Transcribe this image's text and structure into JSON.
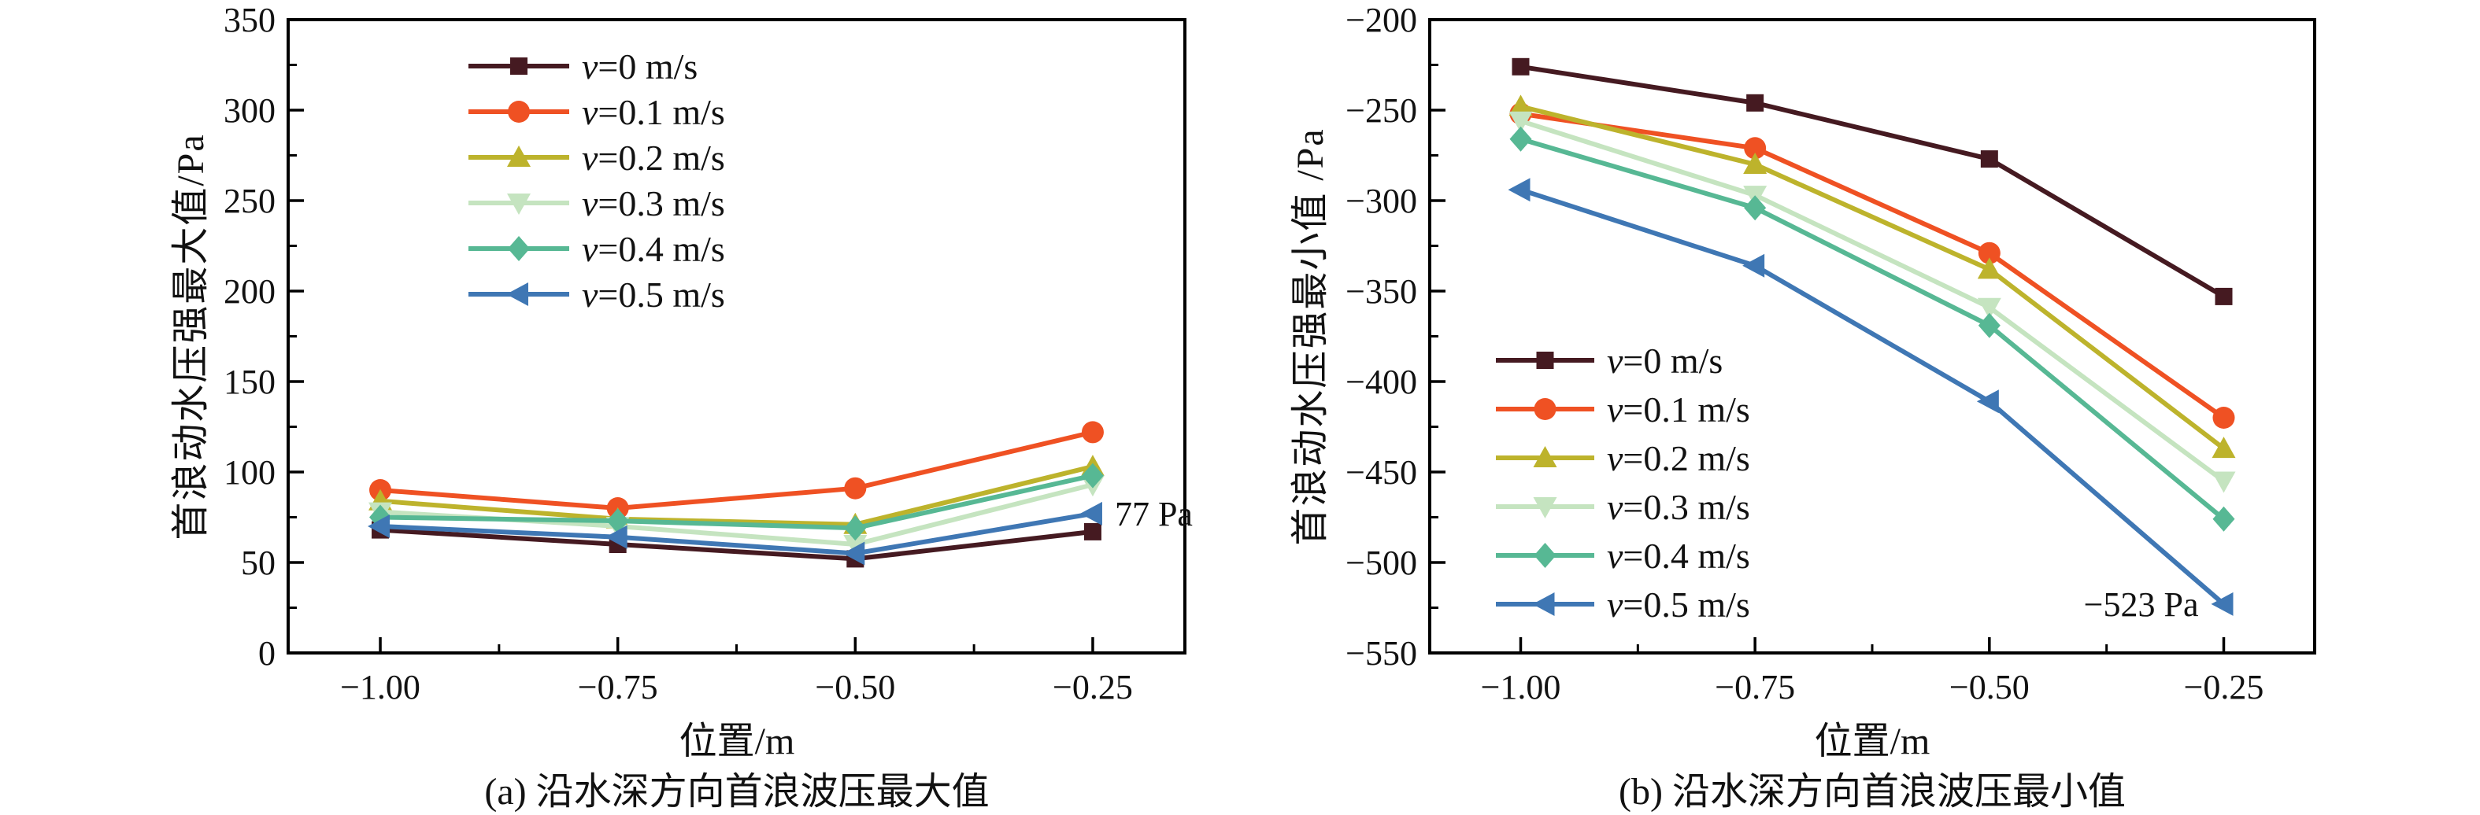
{
  "figure": {
    "background": "#ffffff",
    "text_color": "#111111",
    "frame_color": "#000000"
  },
  "chart_data": [
    {
      "id": "a",
      "type": "line",
      "title": "(a) 沿水深方向首浪波压最大值",
      "xlabel": "位置/m",
      "ylabel": "首浪动水压强最大值/Pa",
      "x": [
        -1.0,
        -0.75,
        -0.5,
        -0.25
      ],
      "xtick_labels": [
        "−1.00",
        "−0.75",
        "−0.50",
        "−0.25"
      ],
      "xlim": [
        -1.097,
        -0.153
      ],
      "ylim": [
        0,
        350
      ],
      "ytick_step": 50,
      "grid": false,
      "legend_position": "inside-top-left",
      "series": [
        {
          "name": "v=0 m/s",
          "marker": "square",
          "color": "#451a21",
          "values": [
            68,
            60,
            52,
            67
          ]
        },
        {
          "name": "v=0.1 m/s",
          "marker": "circle",
          "color": "#ef5123",
          "values": [
            90,
            80,
            91,
            122
          ]
        },
        {
          "name": "v=0.2 m/s",
          "marker": "triangle-up",
          "color": "#bdb32c",
          "values": [
            84,
            74,
            71,
            103
          ]
        },
        {
          "name": "v=0.3 m/s",
          "marker": "triangle-down",
          "color": "#c5e4c0",
          "values": [
            78,
            70,
            60,
            93
          ]
        },
        {
          "name": "v=0.4 m/s",
          "marker": "diamond",
          "color": "#57b894",
          "values": [
            75,
            73,
            69,
            98
          ]
        },
        {
          "name": "v=0.5 m/s",
          "marker": "triangle-left",
          "color": "#3f77b4",
          "values": [
            70,
            64,
            55,
            77
          ]
        }
      ],
      "annotation": {
        "text": "77 Pa",
        "series_index": 5,
        "point_index": 3,
        "side": "right"
      }
    },
    {
      "id": "b",
      "type": "line",
      "title": "(b) 沿水深方向首浪波压最小值",
      "xlabel": "位置/m",
      "ylabel": "首浪动水压强最小值 /Pa",
      "x": [
        -1.0,
        -0.75,
        -0.5,
        -0.25
      ],
      "xtick_labels": [
        "−1.00",
        "−0.75",
        "−0.50",
        "−0.25"
      ],
      "xlim": [
        -1.097,
        -0.153
      ],
      "ylim": [
        -550,
        -200
      ],
      "ytick_step": 50,
      "grid": false,
      "legend_position": "inside-bottom-left",
      "series": [
        {
          "name": "v=0 m/s",
          "marker": "square",
          "color": "#451a21",
          "values": [
            -226,
            -246,
            -277,
            -353
          ]
        },
        {
          "name": "v=0.1 m/s",
          "marker": "circle",
          "color": "#ef5123",
          "values": [
            -252,
            -271,
            -329,
            -420
          ]
        },
        {
          "name": "v=0.2 m/s",
          "marker": "triangle-up",
          "color": "#bdb32c",
          "values": [
            -248,
            -280,
            -338,
            -437
          ]
        },
        {
          "name": "v=0.3 m/s",
          "marker": "triangle-down",
          "color": "#c5e4c0",
          "values": [
            -256,
            -297,
            -359,
            -455
          ]
        },
        {
          "name": "v=0.4 m/s",
          "marker": "diamond",
          "color": "#57b894",
          "values": [
            -266,
            -304,
            -369,
            -476
          ]
        },
        {
          "name": "v=0.5 m/s",
          "marker": "triangle-left",
          "color": "#3f77b4",
          "values": [
            -294,
            -336,
            -411,
            -523
          ]
        }
      ],
      "annotation": {
        "text": "−523 Pa",
        "series_index": 5,
        "point_index": 3,
        "side": "left"
      }
    }
  ]
}
